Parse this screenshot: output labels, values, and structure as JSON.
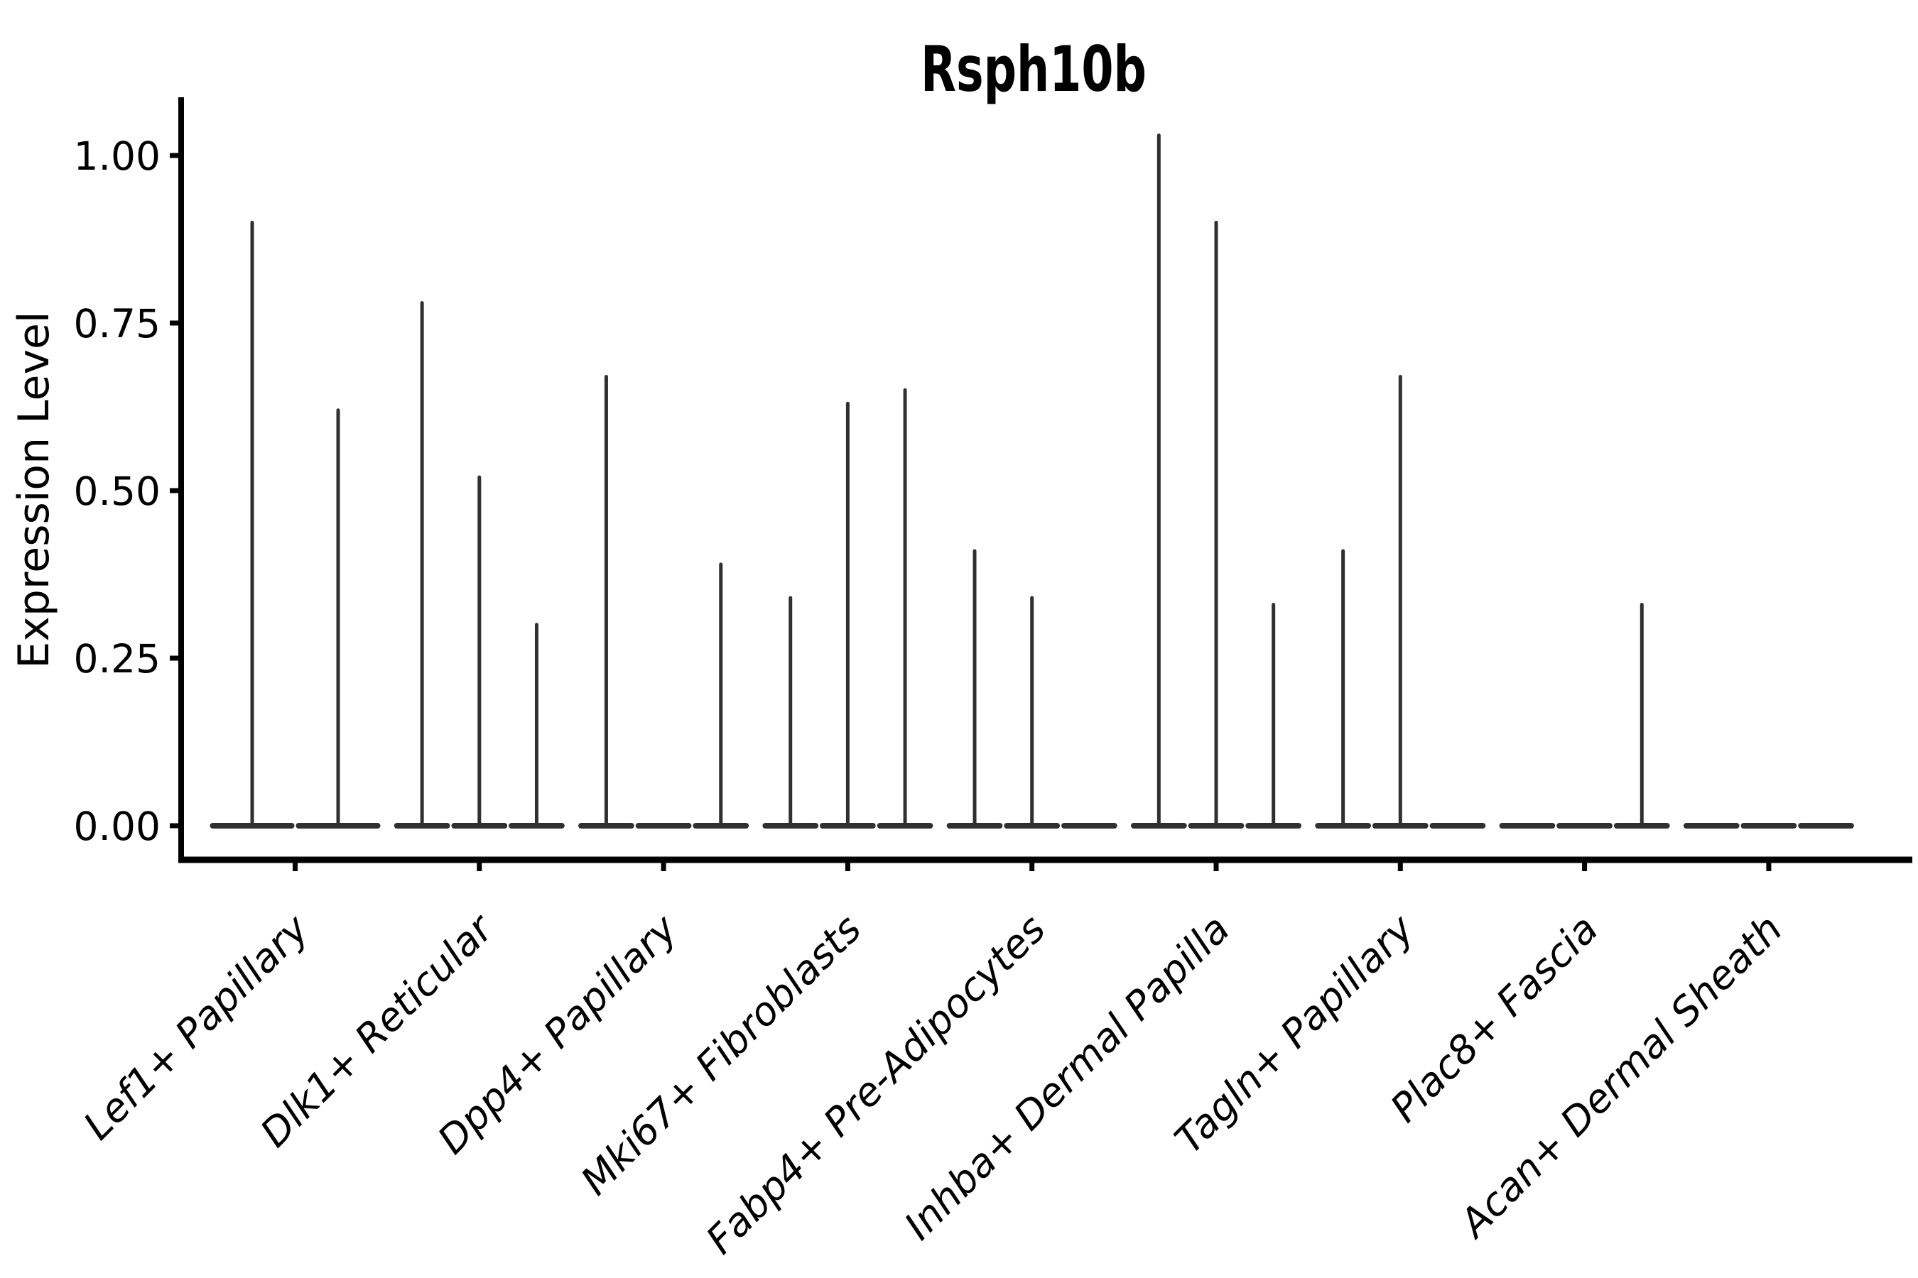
{
  "chart_data": {
    "type": "violin",
    "title": "Rsph10b",
    "xlabel": "",
    "ylabel": "Expression Level",
    "ylim": [
      -0.08,
      1.09
    ],
    "ytick_values": [
      0,
      0.25,
      0.5,
      0.75,
      1.0
    ],
    "ytick_labels": [
      "0.00",
      "0.25",
      "0.50",
      "0.75",
      "1.00"
    ],
    "grid": false,
    "legend_position": "none",
    "violin_style": "thin spike with flat base at zero, dark gray lines, groups of sub-violins per category",
    "categories": [
      "Lef1+ Papillary",
      "Dlk1+ Reticular",
      "Dpp4+ Papillary",
      "Mki67+ Fibroblasts",
      "Fabp4+ Pre-Adipocytes",
      "Inhba+ Dermal Papilla",
      "Tagln+ Papillary",
      "Plac8+ Fascia",
      "Acan+ Dermal Sheath"
    ],
    "groups": [
      {
        "label": "Lef1+ Papillary",
        "violin_maxima": [
          0.9,
          0.62
        ]
      },
      {
        "label": "Dlk1+ Reticular",
        "violin_maxima": [
          0.78,
          0.52,
          0.3
        ]
      },
      {
        "label": "Dpp4+ Papillary",
        "violin_maxima": [
          0.67,
          0,
          0.39
        ]
      },
      {
        "label": "Mki67+ Fibroblasts",
        "violin_maxima": [
          0.34,
          0.63,
          0.65
        ]
      },
      {
        "label": "Fabp4+ Pre-Adipocytes",
        "violin_maxima": [
          0.41,
          0.34,
          0
        ]
      },
      {
        "label": "Inhba+ Dermal Papilla",
        "violin_maxima": [
          1.03,
          0.9,
          0.33
        ]
      },
      {
        "label": "Tagln+ Papillary",
        "violin_maxima": [
          0.41,
          0.67,
          0
        ]
      },
      {
        "label": "Plac8+ Fascia",
        "violin_maxima": [
          0,
          0,
          0.33
        ]
      },
      {
        "label": "Acan+ Dermal Sheath",
        "violin_maxima": [
          0,
          0,
          0
        ]
      }
    ],
    "colors": {
      "violin_line": "#303030",
      "axis": "#000000",
      "text": "#000000",
      "background": "#ffffff"
    }
  }
}
